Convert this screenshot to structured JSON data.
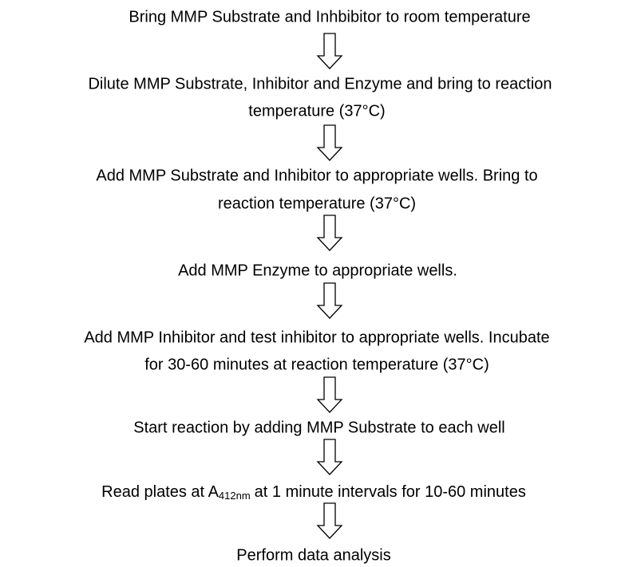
{
  "nodes": [
    {
      "lines": [
        "Bring MMP Substrate and Inhbibitor to room temperature"
      ]
    },
    {
      "lines": [
        "Dilute MMP Substrate, Inhibitor and Enzyme and bring to reaction",
        "temperature (37°C)"
      ]
    },
    {
      "lines": [
        "Add MMP Substrate and Inhibitor to appropriate wells. Bring to",
        "reaction temperature (37°C)"
      ]
    },
    {
      "lines": [
        "Add MMP Enzyme to appropriate wells."
      ]
    },
    {
      "lines": [
        "Add MMP Inhibitor and test inhibitor to appropriate wells. Incubate",
        "for 30-60 minutes at reaction temperature (37°C)"
      ]
    },
    {
      "lines": [
        "Start reaction by adding MMP Substrate to each well"
      ]
    },
    {
      "text_before": "Read plates at A",
      "subscript": "412nm",
      "text_after": "at 1 minute intervals for 10-60 minutes"
    },
    {
      "lines": [
        "Perform data analysis"
      ]
    }
  ]
}
